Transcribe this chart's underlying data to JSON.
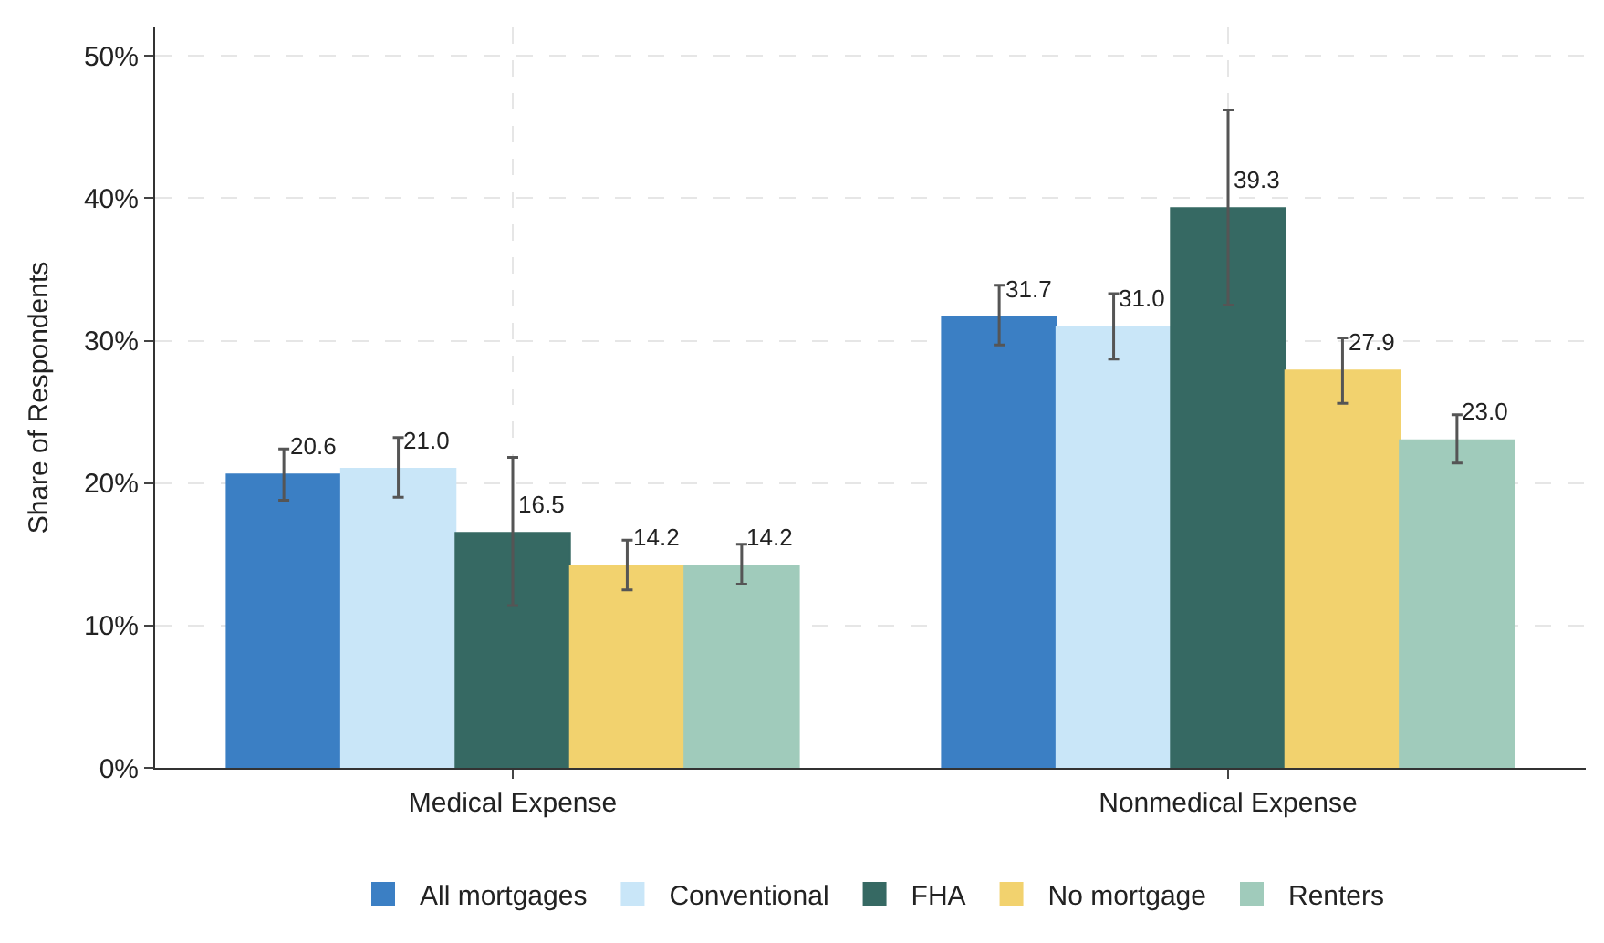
{
  "chart_data": {
    "type": "bar",
    "ylabel": "Share of Respondents",
    "categories": [
      "Medical Expense",
      "Nonmedical Expense"
    ],
    "series": [
      {
        "name": "All mortgages",
        "color": "#3b7fc4",
        "values": [
          20.6,
          31.7
        ],
        "value_labels": [
          "20.6",
          "31.7"
        ],
        "errors": [
          [
            18.8,
            22.4
          ],
          [
            29.7,
            33.9
          ]
        ]
      },
      {
        "name": "Conventional",
        "color": "#c9e6f8",
        "values": [
          21.0,
          31.0
        ],
        "value_labels": [
          "21.0",
          "31.0"
        ],
        "errors": [
          [
            19.0,
            23.2
          ],
          [
            28.7,
            33.3
          ]
        ]
      },
      {
        "name": "FHA",
        "color": "#366963",
        "values": [
          16.5,
          39.3
        ],
        "value_labels": [
          "16.5",
          "39.3"
        ],
        "errors": [
          [
            11.4,
            21.8
          ],
          [
            32.5,
            46.2
          ]
        ]
      },
      {
        "name": "No mortgage",
        "color": "#f2d26e",
        "values": [
          14.2,
          27.9
        ],
        "value_labels": [
          "14.2",
          "27.9"
        ],
        "errors": [
          [
            12.5,
            16.0
          ],
          [
            25.6,
            30.2
          ]
        ]
      },
      {
        "name": "Renters",
        "color": "#a0cbbb",
        "values": [
          14.2,
          23.0
        ],
        "value_labels": [
          "14.2",
          "23.0"
        ],
        "errors": [
          [
            12.9,
            15.7
          ],
          [
            21.4,
            24.8
          ]
        ]
      }
    ],
    "ylim": [
      0,
      52
    ],
    "yticks": [
      {
        "value": 0,
        "label": "0%"
      },
      {
        "value": 10,
        "label": "10%"
      },
      {
        "value": 20,
        "label": "20%"
      },
      {
        "value": 30,
        "label": "30%"
      },
      {
        "value": 40,
        "label": "40%"
      },
      {
        "value": 50,
        "label": "50%"
      }
    ],
    "grid": true,
    "legend": "bottom"
  }
}
